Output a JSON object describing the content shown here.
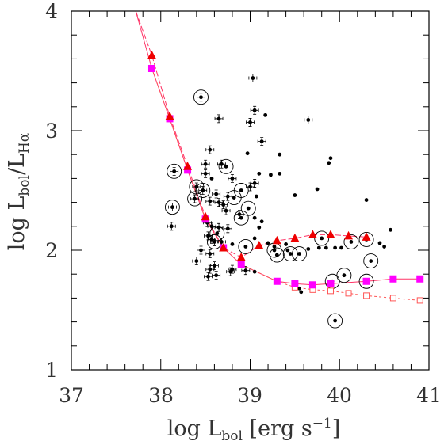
{
  "chart_data": {
    "type": "scatter",
    "xlabel": {
      "main": "log L",
      "sub": "bol",
      "unit": " [erg s",
      "exp": "−1",
      "close": "]"
    },
    "ylabel": {
      "main": "log L",
      "sub": "bol",
      "slash": "/L",
      "sub2": "Hα"
    },
    "xlim": [
      37,
      41
    ],
    "ylim": [
      1,
      4
    ],
    "x_ticks": [
      "37",
      "38",
      "39",
      "40",
      "41"
    ],
    "y_ticks": [
      "1",
      "2",
      "3",
      "4"
    ],
    "grid": false,
    "colors": {
      "points": "#000000",
      "model_triangle": "#ee0000",
      "model_square": "#ff00ff",
      "model_curve": "#ff3366",
      "model_open": "#ff5555"
    },
    "observations": [
      {
        "x": 38.45,
        "y": 3.28,
        "circled": true,
        "err": true
      },
      {
        "x": 39.03,
        "y": 3.44,
        "err": true
      },
      {
        "x": 38.65,
        "y": 3.1,
        "err": true
      },
      {
        "x": 39.05,
        "y": 3.17,
        "err": true
      },
      {
        "x": 39.0,
        "y": 3.07,
        "err": true
      },
      {
        "x": 39.13,
        "y": 2.91,
        "err": true
      },
      {
        "x": 39.17,
        "y": 3.13
      },
      {
        "x": 39.65,
        "y": 3.09,
        "err": true
      },
      {
        "x": 38.55,
        "y": 2.84,
        "err": true
      },
      {
        "x": 38.5,
        "y": 2.72,
        "err": true
      },
      {
        "x": 38.68,
        "y": 2.72,
        "err": true
      },
      {
        "x": 38.73,
        "y": 2.7,
        "circled": true
      },
      {
        "x": 38.15,
        "y": 2.66,
        "circled": true,
        "err": true
      },
      {
        "x": 38.97,
        "y": 2.81
      },
      {
        "x": 39.33,
        "y": 2.8
      },
      {
        "x": 39.9,
        "y": 2.77
      },
      {
        "x": 39.88,
        "y": 2.73
      },
      {
        "x": 39.1,
        "y": 2.64
      },
      {
        "x": 39.23,
        "y": 2.63
      },
      {
        "x": 39.33,
        "y": 2.64
      },
      {
        "x": 38.5,
        "y": 2.64,
        "err": true
      },
      {
        "x": 38.57,
        "y": 2.6
      },
      {
        "x": 38.8,
        "y": 2.6,
        "err": true
      },
      {
        "x": 39.05,
        "y": 2.56,
        "err": true
      },
      {
        "x": 39.0,
        "y": 2.53,
        "err": true
      },
      {
        "x": 38.4,
        "y": 2.53,
        "circled": true,
        "err": true
      },
      {
        "x": 38.47,
        "y": 2.5,
        "circled": true,
        "err": true
      },
      {
        "x": 38.9,
        "y": 2.5,
        "circled": true
      },
      {
        "x": 39.75,
        "y": 2.51
      },
      {
        "x": 39.5,
        "y": 2.46
      },
      {
        "x": 38.62,
        "y": 2.47,
        "err": true
      },
      {
        "x": 38.75,
        "y": 2.45,
        "err": true
      },
      {
        "x": 38.82,
        "y": 2.44,
        "circled": true
      },
      {
        "x": 39.07,
        "y": 2.45
      },
      {
        "x": 38.38,
        "y": 2.43,
        "circled": true,
        "err": true
      },
      {
        "x": 40.3,
        "y": 2.42
      },
      {
        "x": 38.55,
        "y": 2.41,
        "err": true
      },
      {
        "x": 38.65,
        "y": 2.4,
        "err": true
      },
      {
        "x": 38.7,
        "y": 2.38,
        "err": true
      },
      {
        "x": 38.13,
        "y": 2.36,
        "circled": true,
        "err": true
      },
      {
        "x": 38.98,
        "y": 2.35,
        "circled": true
      },
      {
        "x": 38.73,
        "y": 2.33,
        "err": true
      },
      {
        "x": 38.88,
        "y": 2.3,
        "err": true
      },
      {
        "x": 38.9,
        "y": 2.27,
        "circled": true
      },
      {
        "x": 39.05,
        "y": 2.27
      },
      {
        "x": 38.52,
        "y": 2.23,
        "err": true
      },
      {
        "x": 39.13,
        "y": 2.24
      },
      {
        "x": 38.57,
        "y": 2.2,
        "err": true
      },
      {
        "x": 38.65,
        "y": 2.19,
        "err": true
      },
      {
        "x": 38.12,
        "y": 2.2,
        "err": true
      },
      {
        "x": 38.75,
        "y": 2.18,
        "err": true
      },
      {
        "x": 39.1,
        "y": 2.19
      },
      {
        "x": 38.63,
        "y": 2.14,
        "circled": true
      },
      {
        "x": 38.53,
        "y": 2.12,
        "err": true
      },
      {
        "x": 38.57,
        "y": 2.09,
        "err": true
      },
      {
        "x": 38.6,
        "y": 2.07,
        "circled": true,
        "err": true
      },
      {
        "x": 38.68,
        "y": 2.07,
        "err": true
      },
      {
        "x": 38.8,
        "y": 2.05
      },
      {
        "x": 38.95,
        "y": 2.03,
        "circled": true
      },
      {
        "x": 39.05,
        "y": 2.1
      },
      {
        "x": 39.2,
        "y": 2.06
      },
      {
        "x": 39.27,
        "y": 2.03
      },
      {
        "x": 39.27,
        "y": 2.0,
        "circled": true
      },
      {
        "x": 39.3,
        "y": 1.96,
        "circled": true
      },
      {
        "x": 39.4,
        "y": 2.05
      },
      {
        "x": 39.42,
        "y": 2.0
      },
      {
        "x": 39.45,
        "y": 1.97,
        "circled": true
      },
      {
        "x": 39.55,
        "y": 1.97,
        "circled": true
      },
      {
        "x": 39.65,
        "y": 2.01
      },
      {
        "x": 39.8,
        "y": 2.1,
        "circled": true
      },
      {
        "x": 39.77,
        "y": 2.02
      },
      {
        "x": 39.85,
        "y": 2.02
      },
      {
        "x": 39.95,
        "y": 2.02
      },
      {
        "x": 40.02,
        "y": 2.02
      },
      {
        "x": 40.13,
        "y": 2.07,
        "circled": true
      },
      {
        "x": 40.3,
        "y": 2.09,
        "circled": true
      },
      {
        "x": 40.35,
        "y": 1.91,
        "circled": true
      },
      {
        "x": 40.45,
        "y": 2.06
      },
      {
        "x": 40.5,
        "y": 2.03
      },
      {
        "x": 40.57,
        "y": 2.17
      },
      {
        "x": 38.45,
        "y": 2.0,
        "err": true
      },
      {
        "x": 38.55,
        "y": 1.97,
        "err": true
      },
      {
        "x": 38.4,
        "y": 1.91,
        "err": true
      },
      {
        "x": 38.6,
        "y": 1.87,
        "err": true
      },
      {
        "x": 38.55,
        "y": 1.84,
        "err": true
      },
      {
        "x": 38.53,
        "y": 1.78,
        "err": true
      },
      {
        "x": 38.62,
        "y": 1.79,
        "err": true
      },
      {
        "x": 38.8,
        "y": 1.84,
        "err": true
      },
      {
        "x": 38.78,
        "y": 1.82,
        "err": true
      },
      {
        "x": 38.95,
        "y": 1.83,
        "err": true
      },
      {
        "x": 39.05,
        "y": 1.82
      },
      {
        "x": 39.55,
        "y": 1.68
      },
      {
        "x": 39.57,
        "y": 1.65
      },
      {
        "x": 39.92,
        "y": 1.74,
        "circled": true
      },
      {
        "x": 40.05,
        "y": 1.79,
        "circled": true
      },
      {
        "x": 40.3,
        "y": 1.74,
        "circled": true
      },
      {
        "x": 39.95,
        "y": 1.41,
        "circled": true
      }
    ],
    "model_triangles": [
      {
        "x": 37.9,
        "y": 3.63
      },
      {
        "x": 38.1,
        "y": 3.12
      },
      {
        "x": 38.3,
        "y": 2.7
      },
      {
        "x": 38.5,
        "y": 2.28
      },
      {
        "x": 38.7,
        "y": 2.02
      },
      {
        "x": 38.9,
        "y": 1.94
      },
      {
        "x": 39.1,
        "y": 2.04
      },
      {
        "x": 39.3,
        "y": 2.08
      },
      {
        "x": 39.5,
        "y": 2.1
      },
      {
        "x": 39.7,
        "y": 2.13
      },
      {
        "x": 39.9,
        "y": 2.13
      },
      {
        "x": 40.1,
        "y": 2.12
      },
      {
        "x": 40.3,
        "y": 2.11
      }
    ],
    "model_squares": [
      {
        "x": 37.9,
        "y": 3.52
      },
      {
        "x": 38.1,
        "y": 3.1
      },
      {
        "x": 38.3,
        "y": 2.67
      },
      {
        "x": 38.5,
        "y": 2.26
      },
      {
        "x": 38.7,
        "y": 2.02
      },
      {
        "x": 38.9,
        "y": 1.88
      },
      {
        "x": 39.3,
        "y": 1.74
      },
      {
        "x": 39.5,
        "y": 1.72
      },
      {
        "x": 39.7,
        "y": 1.71
      },
      {
        "x": 39.9,
        "y": 1.72
      },
      {
        "x": 40.3,
        "y": 1.74
      },
      {
        "x": 40.6,
        "y": 1.76
      },
      {
        "x": 40.9,
        "y": 1.76
      }
    ],
    "model_open_squares": [
      {
        "x": 39.5,
        "y": 1.69
      },
      {
        "x": 39.7,
        "y": 1.67
      },
      {
        "x": 39.9,
        "y": 1.66
      },
      {
        "x": 40.1,
        "y": 1.64
      },
      {
        "x": 40.3,
        "y": 1.62
      },
      {
        "x": 40.6,
        "y": 1.6
      },
      {
        "x": 40.9,
        "y": 1.58
      }
    ],
    "curve_start": {
      "x": 37.72,
      "y": 4.0
    }
  }
}
